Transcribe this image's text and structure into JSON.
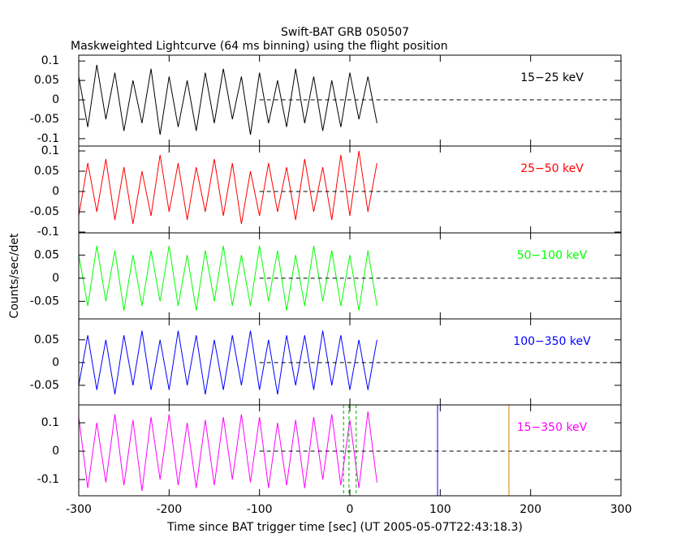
{
  "chart_data": [
    {
      "type": "line",
      "title": "Swift-BAT GRB 050507",
      "subtitle": "Maskweighted Lightcurve (64 ms binning) using the flight position",
      "label": "15−25 keV",
      "color": "#000000",
      "x": [
        -300,
        -290,
        -280,
        -270,
        -260,
        -250,
        -240,
        -230,
        -220,
        -210,
        -200,
        -190,
        -180,
        -170,
        -160,
        -150,
        -140,
        -130,
        -120,
        -110,
        -100,
        -90,
        -80,
        -70,
        -60,
        -50,
        -40,
        -30,
        -20,
        -10,
        0,
        10,
        20,
        30
      ],
      "values": [
        0.06,
        -0.07,
        0.09,
        -0.05,
        0.07,
        -0.08,
        0.05,
        -0.06,
        0.08,
        -0.09,
        0.06,
        -0.07,
        0.05,
        -0.08,
        0.07,
        -0.06,
        0.08,
        -0.05,
        0.06,
        -0.09,
        0.07,
        -0.06,
        0.05,
        -0.07,
        0.08,
        -0.06,
        0.06,
        -0.08,
        0.05,
        -0.07,
        0.07,
        -0.05,
        0.06,
        -0.06
      ],
      "xlim": [
        -300,
        300
      ],
      "ylim": [
        -0.119,
        0.115
      ],
      "yticks": [
        -0.1,
        -0.05,
        0,
        0.05,
        0.1
      ],
      "dashed_zero_from": -100
    },
    {
      "type": "line",
      "label": "25−50 keV",
      "color": "#ff0000",
      "x": [
        -300,
        -290,
        -280,
        -270,
        -260,
        -250,
        -240,
        -230,
        -220,
        -210,
        -200,
        -190,
        -180,
        -170,
        -160,
        -150,
        -140,
        -130,
        -120,
        -110,
        -100,
        -90,
        -80,
        -70,
        -60,
        -50,
        -40,
        -30,
        -20,
        -10,
        0,
        10,
        20,
        30
      ],
      "values": [
        -0.06,
        0.07,
        -0.05,
        0.08,
        -0.07,
        0.06,
        -0.08,
        0.05,
        -0.06,
        0.09,
        -0.05,
        0.07,
        -0.07,
        0.06,
        -0.05,
        0.08,
        -0.06,
        0.07,
        -0.08,
        0.05,
        -0.06,
        0.07,
        -0.05,
        0.06,
        -0.07,
        0.08,
        -0.05,
        0.06,
        -0.07,
        0.09,
        -0.06,
        0.1,
        -0.05,
        0.07
      ],
      "xlim": [
        -300,
        300
      ],
      "ylim": [
        -0.102,
        0.112
      ],
      "yticks": [
        -0.1,
        -0.05,
        0,
        0.05,
        0.1
      ],
      "dashed_zero_from": -100
    },
    {
      "type": "line",
      "label": "50−100 keV",
      "color": "#00ff00",
      "ylabel": "Counts/sec/det",
      "x": [
        -300,
        -290,
        -280,
        -270,
        -260,
        -250,
        -240,
        -230,
        -220,
        -210,
        -200,
        -190,
        -180,
        -170,
        -160,
        -150,
        -140,
        -130,
        -120,
        -110,
        -100,
        -90,
        -80,
        -70,
        -60,
        -50,
        -40,
        -30,
        -20,
        -10,
        0,
        10,
        20,
        30
      ],
      "values": [
        0.05,
        -0.06,
        0.07,
        -0.05,
        0.06,
        -0.07,
        0.05,
        -0.06,
        0.06,
        -0.05,
        0.07,
        -0.06,
        0.05,
        -0.07,
        0.06,
        -0.05,
        0.07,
        -0.06,
        0.05,
        -0.06,
        0.07,
        -0.05,
        0.06,
        -0.07,
        0.05,
        -0.06,
        0.07,
        -0.05,
        0.06,
        -0.06,
        0.05,
        -0.07,
        0.06,
        -0.06
      ],
      "xlim": [
        -300,
        300
      ],
      "ylim": [
        -0.088,
        0.098
      ],
      "yticks": [
        -0.05,
        0,
        0.05
      ],
      "dashed_zero_from": -100
    },
    {
      "type": "line",
      "label": "100−350 keV",
      "color": "#0000ff",
      "x": [
        -300,
        -290,
        -280,
        -270,
        -260,
        -250,
        -240,
        -230,
        -220,
        -210,
        -200,
        -190,
        -180,
        -170,
        -160,
        -150,
        -140,
        -130,
        -120,
        -110,
        -100,
        -90,
        -80,
        -70,
        -60,
        -50,
        -40,
        -30,
        -20,
        -10,
        0,
        10,
        20,
        30
      ],
      "values": [
        -0.05,
        0.06,
        -0.06,
        0.05,
        -0.07,
        0.06,
        -0.05,
        0.07,
        -0.06,
        0.05,
        -0.06,
        0.07,
        -0.05,
        0.06,
        -0.07,
        0.05,
        -0.06,
        0.06,
        -0.05,
        0.07,
        -0.06,
        0.05,
        -0.07,
        0.06,
        -0.05,
        0.06,
        -0.06,
        0.07,
        -0.05,
        0.06,
        -0.06,
        0.05,
        -0.06,
        0.05
      ],
      "xlim": [
        -300,
        300
      ],
      "ylim": [
        -0.093,
        0.096
      ],
      "yticks": [
        -0.05,
        0,
        0.05
      ],
      "dashed_zero_from": -100
    },
    {
      "type": "line",
      "label": "15−350 keV",
      "color": "#ff00ff",
      "xlabel": "Time since BAT trigger time [sec] (UT 2005-05-07T22:43:18.3)",
      "x": [
        -300,
        -290,
        -280,
        -270,
        -260,
        -250,
        -240,
        -230,
        -220,
        -210,
        -200,
        -190,
        -180,
        -170,
        -160,
        -150,
        -140,
        -130,
        -120,
        -110,
        -100,
        -90,
        -80,
        -70,
        -60,
        -50,
        -40,
        -30,
        -20,
        -10,
        0,
        10,
        20,
        30
      ],
      "values": [
        0.12,
        -0.13,
        0.1,
        -0.11,
        0.13,
        -0.12,
        0.11,
        -0.14,
        0.12,
        -0.1,
        0.13,
        -0.12,
        0.1,
        -0.13,
        0.11,
        -0.12,
        0.12,
        -0.1,
        0.13,
        -0.11,
        0.12,
        -0.13,
        0.1,
        -0.12,
        0.11,
        -0.13,
        0.12,
        -0.1,
        0.13,
        -0.12,
        0.11,
        -0.13,
        0.14,
        -0.11
      ],
      "xlim": [
        -300,
        300
      ],
      "ylim": [
        -0.157,
        0.163
      ],
      "yticks": [
        -0.1,
        0,
        0.1
      ],
      "dashed_zero_from": -100,
      "xticks": [
        -300,
        -200,
        -100,
        0,
        100,
        200,
        300
      ],
      "vlines": [
        {
          "x": -7,
          "color": "#00aa00",
          "dashed": true
        },
        {
          "x": -1,
          "color": "#00aa00",
          "dashed": true
        },
        {
          "x": 7,
          "color": "#00aa00",
          "dashed": true
        },
        {
          "x": 97,
          "color": "#0000ff",
          "dashed": false
        },
        {
          "x": 176,
          "color": "#e08000",
          "dashed": false
        }
      ]
    }
  ]
}
